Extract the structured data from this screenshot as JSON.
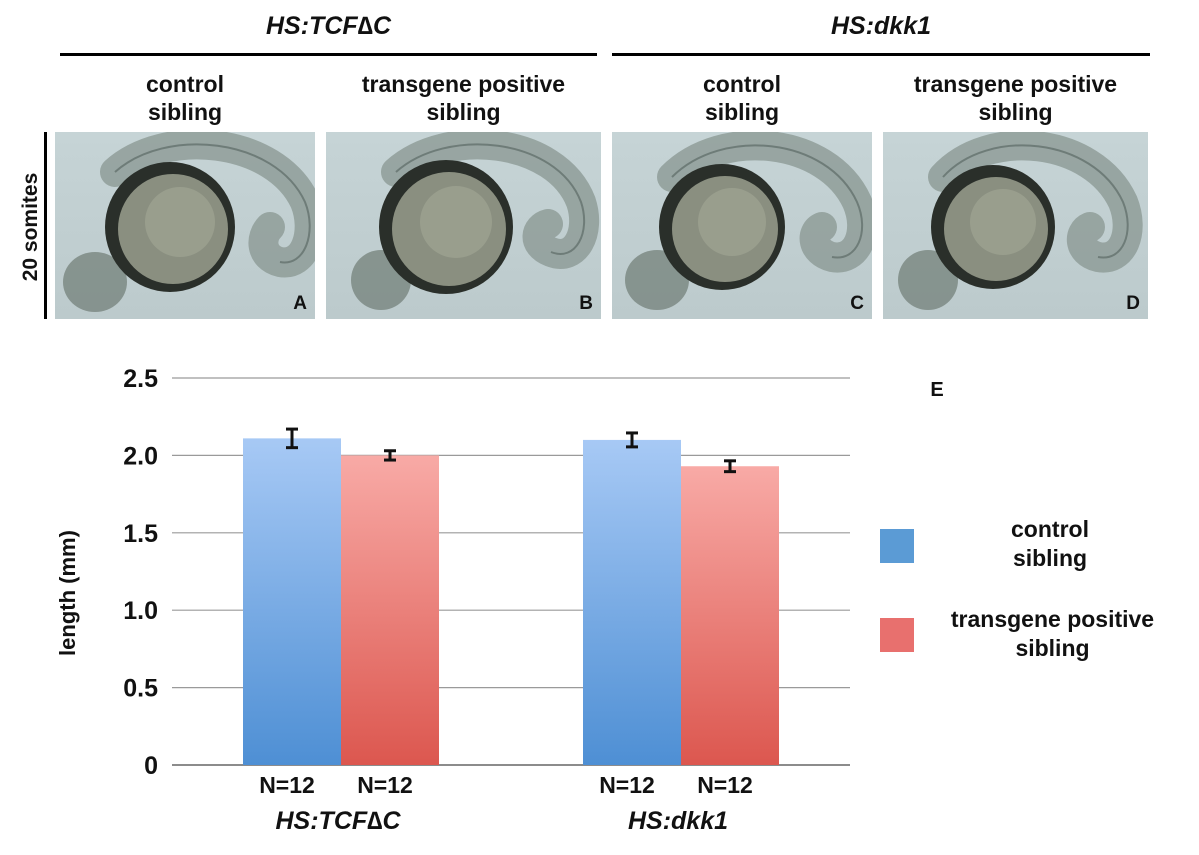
{
  "header": {
    "group1_title": "HS:TCF∆C",
    "group2_title": "HS:dkk1",
    "col_label_control": "control\nsibling",
    "col_label_transgene": "transgene positive\nsibling",
    "row_label": "20 somites"
  },
  "panels": [
    {
      "letter": "A"
    },
    {
      "letter": "B"
    },
    {
      "letter": "C"
    },
    {
      "letter": "D"
    }
  ],
  "chart_data": {
    "type": "bar",
    "panel_label": "E",
    "ylabel": "length (mm)",
    "ylim": [
      0,
      2.5
    ],
    "yticks": [
      "0",
      "0.5",
      "1.0",
      "1.5",
      "2.0",
      "2.5"
    ],
    "grid": true,
    "categories": [
      "HS:TCF∆C",
      "HS:dkk1"
    ],
    "series": [
      {
        "name": "control sibling",
        "values": [
          2.11,
          2.1
        ],
        "errors": [
          0.06,
          0.045
        ],
        "n_labels": [
          "N=12",
          "N=12"
        ],
        "color": "#5b9bd5"
      },
      {
        "name": "transgene positive sibling",
        "values": [
          2.0,
          1.93
        ],
        "errors": [
          0.03,
          0.035
        ],
        "n_labels": [
          "N=12",
          "N=12"
        ],
        "color": "#e06666"
      }
    ],
    "legend": {
      "position": "right",
      "entries": [
        {
          "label": "control\nsibling",
          "color": "#5b9bd5"
        },
        {
          "label": "transgene positive\nsibling",
          "color": "#e8706e"
        }
      ]
    }
  }
}
